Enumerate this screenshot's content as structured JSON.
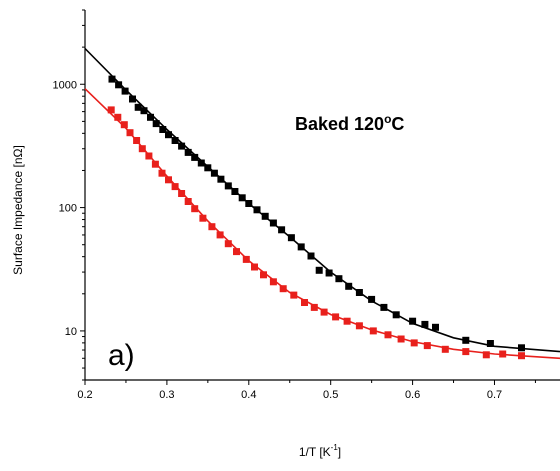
{
  "chart_data": {
    "type": "scatter",
    "title": "",
    "xlabel": "1/T [K",
    "xlabel_sup": "-1",
    "xlabel_end": "]",
    "ylabel": "Surface Impedance [nΩ]",
    "xlim": [
      0.2,
      0.78
    ],
    "ylim": [
      4,
      4000
    ],
    "yscale": "log",
    "grid": false,
    "legend": "none",
    "x_ticks": [
      0.2,
      0.3,
      0.4,
      0.5,
      0.6,
      0.7
    ],
    "x_tick_labels": [
      "0.2",
      "0.3",
      "0.4",
      "0.5",
      "0.6",
      "0.7"
    ],
    "y_ticks": [
      10,
      100,
      1000
    ],
    "y_tick_labels": [
      "10",
      "100",
      "1000"
    ],
    "annotation": {
      "text": "Baked 120",
      "sup": "o",
      "suffix": "C"
    },
    "panel_label": "a)",
    "series": [
      {
        "color": "#000000",
        "marker": "square",
        "points": [
          [
            0.233,
            1100
          ],
          [
            0.241,
            990
          ],
          [
            0.249,
            880
          ],
          [
            0.258,
            760
          ],
          [
            0.265,
            650
          ],
          [
            0.272,
            610
          ],
          [
            0.28,
            540
          ],
          [
            0.287,
            480
          ],
          [
            0.295,
            430
          ],
          [
            0.302,
            390
          ],
          [
            0.31,
            350
          ],
          [
            0.318,
            315
          ],
          [
            0.326,
            280
          ],
          [
            0.334,
            255
          ],
          [
            0.342,
            230
          ],
          [
            0.35,
            210
          ],
          [
            0.358,
            190
          ],
          [
            0.366,
            170
          ],
          [
            0.375,
            150
          ],
          [
            0.383,
            135
          ],
          [
            0.392,
            120
          ],
          [
            0.4,
            108
          ],
          [
            0.41,
            96
          ],
          [
            0.42,
            85
          ],
          [
            0.43,
            75
          ],
          [
            0.44,
            66
          ],
          [
            0.452,
            57
          ],
          [
            0.464,
            48
          ],
          [
            0.476,
            40.5
          ],
          [
            0.486,
            31
          ],
          [
            0.498,
            29.5
          ],
          [
            0.51,
            26.5
          ],
          [
            0.522,
            23
          ],
          [
            0.535,
            20.5
          ],
          [
            0.55,
            18
          ],
          [
            0.565,
            15.5
          ],
          [
            0.58,
            13.5
          ],
          [
            0.6,
            12
          ],
          [
            0.615,
            11.3
          ],
          [
            0.628,
            10.7
          ],
          [
            0.665,
            8.4
          ],
          [
            0.695,
            7.9
          ],
          [
            0.733,
            7.3
          ]
        ],
        "fit": [
          [
            0.2,
            1950
          ],
          [
            0.25,
            900
          ],
          [
            0.3,
            430
          ],
          [
            0.35,
            215
          ],
          [
            0.4,
            108
          ],
          [
            0.45,
            58
          ],
          [
            0.5,
            30
          ],
          [
            0.55,
            17.5
          ],
          [
            0.6,
            11.5
          ],
          [
            0.65,
            8.8
          ],
          [
            0.7,
            7.5
          ],
          [
            0.78,
            6.8
          ]
        ]
      },
      {
        "color": "#e8201c",
        "marker": "square",
        "points": [
          [
            0.232,
            620
          ],
          [
            0.24,
            540
          ],
          [
            0.248,
            470
          ],
          [
            0.255,
            405
          ],
          [
            0.263,
            350
          ],
          [
            0.27,
            300
          ],
          [
            0.278,
            262
          ],
          [
            0.286,
            225
          ],
          [
            0.294,
            190
          ],
          [
            0.302,
            168
          ],
          [
            0.31,
            148
          ],
          [
            0.318,
            130
          ],
          [
            0.326,
            112
          ],
          [
            0.334,
            98
          ],
          [
            0.344,
            82
          ],
          [
            0.355,
            70
          ],
          [
            0.365,
            60
          ],
          [
            0.375,
            51
          ],
          [
            0.385,
            44
          ],
          [
            0.397,
            38
          ],
          [
            0.407,
            33
          ],
          [
            0.418,
            28.5
          ],
          [
            0.43,
            25
          ],
          [
            0.442,
            22
          ],
          [
            0.455,
            19.5
          ],
          [
            0.468,
            17
          ],
          [
            0.48,
            15.5
          ],
          [
            0.492,
            14.2
          ],
          [
            0.506,
            13
          ],
          [
            0.52,
            12
          ],
          [
            0.535,
            11
          ],
          [
            0.552,
            10
          ],
          [
            0.57,
            9.3
          ],
          [
            0.586,
            8.6
          ],
          [
            0.602,
            8
          ],
          [
            0.618,
            7.6
          ],
          [
            0.64,
            7.1
          ],
          [
            0.665,
            6.8
          ],
          [
            0.69,
            6.4
          ],
          [
            0.71,
            6.5
          ],
          [
            0.733,
            6.3
          ]
        ],
        "fit": [
          [
            0.2,
            920
          ],
          [
            0.25,
            440
          ],
          [
            0.3,
            180
          ],
          [
            0.35,
            78
          ],
          [
            0.4,
            37
          ],
          [
            0.45,
            20.5
          ],
          [
            0.5,
            13.6
          ],
          [
            0.55,
            10.2
          ],
          [
            0.6,
            8.2
          ],
          [
            0.65,
            7.1
          ],
          [
            0.7,
            6.5
          ],
          [
            0.78,
            6.0
          ]
        ]
      }
    ]
  }
}
